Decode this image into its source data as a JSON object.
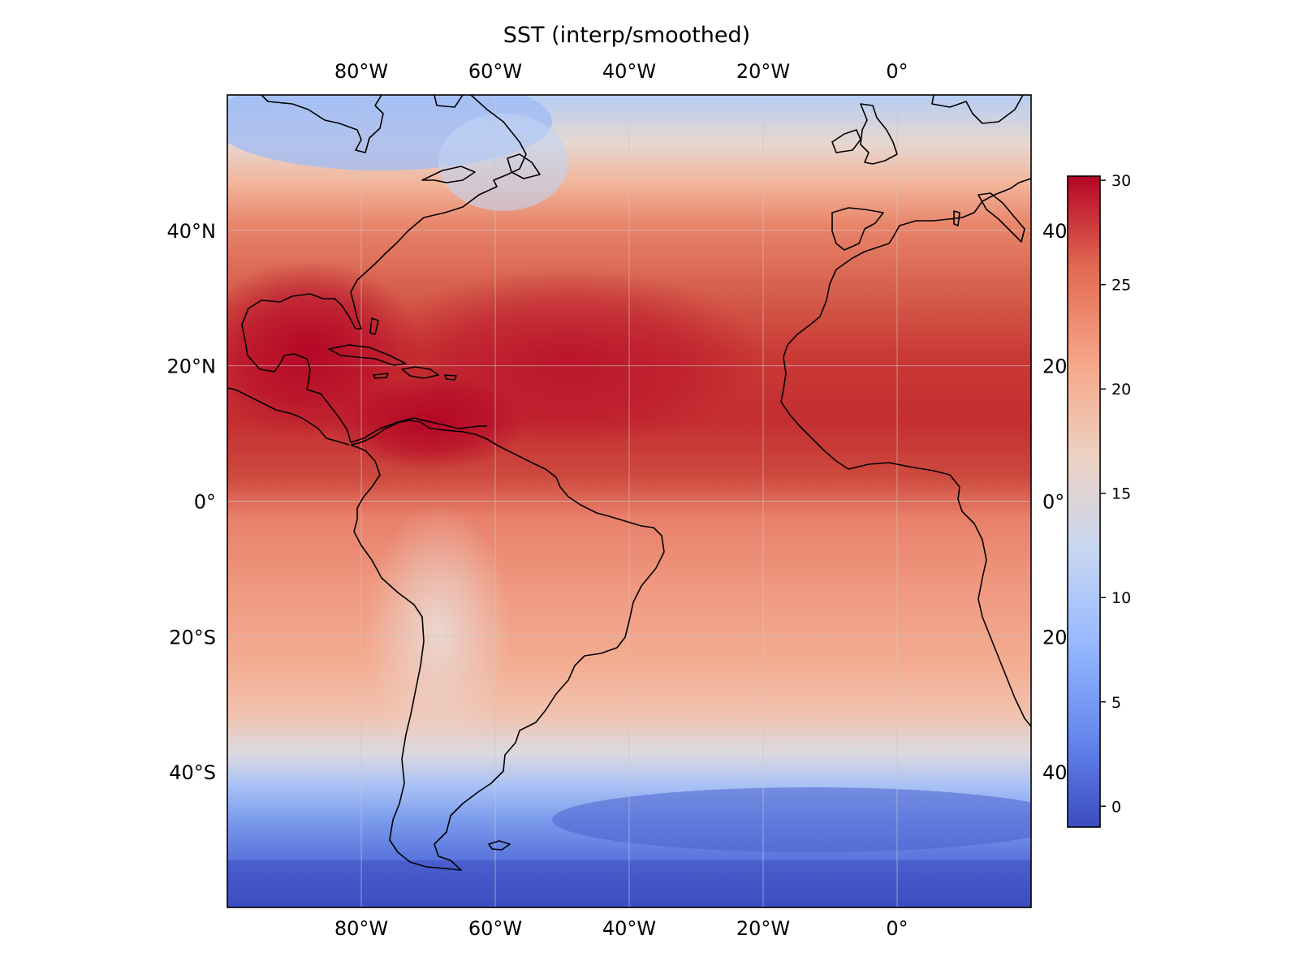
{
  "title": "SST (interp/smoothed)",
  "map": {
    "projection": "PlateCarree",
    "lon_range": [
      -100,
      20
    ],
    "lat_range": [
      -60,
      60
    ],
    "lon_ticks": [
      {
        "value": -80,
        "label": "80°W"
      },
      {
        "value": -60,
        "label": "60°W"
      },
      {
        "value": -40,
        "label": "40°W"
      },
      {
        "value": -20,
        "label": "20°W"
      },
      {
        "value": 0,
        "label": "0°"
      }
    ],
    "lat_ticks_left": [
      {
        "value": 40,
        "label": "40°N"
      },
      {
        "value": 20,
        "label": "20°N"
      },
      {
        "value": 0,
        "label": "0°"
      },
      {
        "value": -20,
        "label": "20°S"
      },
      {
        "value": -40,
        "label": "40°S"
      }
    ],
    "lat_ticks_right": [
      {
        "value": 40,
        "label": "40"
      },
      {
        "value": 20,
        "label": "20"
      },
      {
        "value": 0,
        "label": "0°"
      },
      {
        "value": -20,
        "label": "20"
      },
      {
        "value": -40,
        "label": "40"
      }
    ],
    "gridlines": true
  },
  "colorbar": {
    "colormap": "coolwarm",
    "range": [
      -1,
      30.2
    ],
    "ticks": [
      {
        "value": 30,
        "label": "30"
      },
      {
        "value": 25,
        "label": "25"
      },
      {
        "value": 20,
        "label": "20"
      },
      {
        "value": 15,
        "label": "15"
      },
      {
        "value": 10,
        "label": "10"
      },
      {
        "value": 5,
        "label": "5"
      },
      {
        "value": 0,
        "label": "0"
      }
    ],
    "stops": [
      "#3b4cc0",
      "#6688ee",
      "#9abbff",
      "#c9d7f0",
      "#edd1c2",
      "#f7a889",
      "#e26952",
      "#b40426"
    ]
  }
}
